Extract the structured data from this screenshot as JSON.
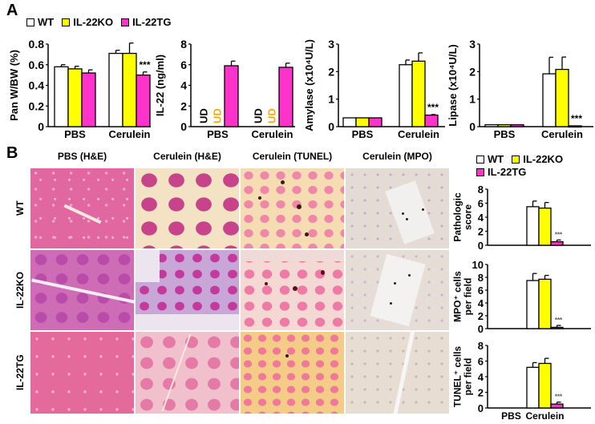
{
  "panelA": {
    "letter": "A",
    "legend": [
      {
        "label": "WT",
        "color": "#ffffff"
      },
      {
        "label": "IL-22KO",
        "color": "#ffff00"
      },
      {
        "label": "IL-22TG",
        "color": "#ff33cc"
      }
    ]
  },
  "panelB": {
    "letter": "B",
    "column_titles": [
      "PBS (H&E)",
      "Cerulein (H&E)",
      "Cerulein (TUNEL)",
      "Cerulein (MPO)"
    ],
    "row_labels": [
      "WT",
      "IL-22KO",
      "IL-22TG"
    ],
    "legend": [
      {
        "label": "WT",
        "color": "#ffffff"
      },
      {
        "label": "IL-22KO",
        "color": "#ffff00"
      },
      {
        "label": "IL-22TG",
        "color": "#ff33cc"
      }
    ]
  },
  "colors": {
    "wt": "#ffffff",
    "ko": "#ffff00",
    "tg": "#ff33cc",
    "ud_wt": "#000000",
    "ud_ko": "#ffaa00"
  },
  "chart_data": [
    {
      "id": "pan_wbw",
      "type": "bar",
      "title": "",
      "xlabel": "",
      "ylabel": "Pan W/BW (%)",
      "categories": [
        "PBS",
        "Cerulein"
      ],
      "ylim": [
        0,
        0.8
      ],
      "yticks": [
        "0",
        "0.2",
        "0.4",
        "0.6",
        "0.8"
      ],
      "series": [
        {
          "name": "WT",
          "values": [
            0.58,
            0.71
          ],
          "errors": [
            0.02,
            0.03
          ]
        },
        {
          "name": "IL-22KO",
          "values": [
            0.56,
            0.71
          ],
          "errors": [
            0.025,
            0.1
          ]
        },
        {
          "name": "IL-22TG",
          "values": [
            0.52,
            0.5
          ],
          "errors": [
            0.03,
            0.03
          ]
        }
      ],
      "annotations": [
        {
          "text": "***",
          "category": "Cerulein",
          "series": "IL-22TG"
        }
      ]
    },
    {
      "id": "il22",
      "type": "bar",
      "title": "",
      "xlabel": "",
      "ylabel": "IL-22 (ng/ml)",
      "categories": [
        "PBS",
        "Cerulein"
      ],
      "ylim": [
        0,
        8
      ],
      "yticks": [
        "0",
        "2",
        "4",
        "6",
        "8"
      ],
      "series": [
        {
          "name": "WT",
          "values": [
            null,
            null
          ],
          "errors": [
            null,
            null
          ],
          "labels": [
            "UD",
            "UD"
          ]
        },
        {
          "name": "IL-22KO",
          "values": [
            null,
            null
          ],
          "errors": [
            null,
            null
          ],
          "labels": [
            "UD",
            "UD"
          ]
        },
        {
          "name": "IL-22TG",
          "values": [
            5.9,
            5.75
          ],
          "errors": [
            0.45,
            0.4
          ]
        }
      ],
      "annotations": []
    },
    {
      "id": "amylase",
      "type": "bar",
      "title": "",
      "xlabel": "",
      "ylabel": "Amylase (x10⁴U/L)",
      "categories": [
        "PBS",
        "Cerulein"
      ],
      "ylim": [
        0,
        3
      ],
      "yticks": [
        "0",
        "1",
        "2",
        "3"
      ],
      "series": [
        {
          "name": "WT",
          "values": [
            0.32,
            2.25
          ],
          "errors": [
            0,
            0.17
          ]
        },
        {
          "name": "IL-22KO",
          "values": [
            0.32,
            2.38
          ],
          "errors": [
            0,
            0.3
          ]
        },
        {
          "name": "IL-22TG",
          "values": [
            0.32,
            0.42
          ],
          "errors": [
            0,
            0.02
          ]
        }
      ],
      "annotations": [
        {
          "text": "***",
          "category": "Cerulein",
          "series": "IL-22TG"
        }
      ]
    },
    {
      "id": "lipase",
      "type": "bar",
      "title": "",
      "xlabel": "",
      "ylabel": "Lipase (x10⁴U/L)",
      "categories": [
        "PBS",
        "Cerulein"
      ],
      "ylim": [
        0,
        3
      ],
      "yticks": [
        "0",
        "1",
        "2",
        "3"
      ],
      "series": [
        {
          "name": "WT",
          "values": [
            0.07,
            1.92
          ],
          "errors": [
            0,
            0.6
          ]
        },
        {
          "name": "IL-22KO",
          "values": [
            0.07,
            2.08
          ],
          "errors": [
            0,
            0.45
          ]
        },
        {
          "name": "IL-22TG",
          "values": [
            0.07,
            0.03
          ],
          "errors": [
            0,
            0
          ]
        }
      ],
      "annotations": [
        {
          "text": "***",
          "category": "Cerulein",
          "series": "IL-22TG"
        }
      ]
    },
    {
      "id": "pathologic_score",
      "type": "bar",
      "title": "",
      "xlabel": "",
      "ylabel": "Pathologic score",
      "categories": [
        "PBS",
        "Cerulein"
      ],
      "ylim": [
        0,
        8
      ],
      "yticks": [
        "0",
        "2",
        "4",
        "6",
        "8"
      ],
      "series": [
        {
          "name": "WT",
          "values": [
            0,
            5.5
          ],
          "errors": [
            0,
            0.8
          ]
        },
        {
          "name": "IL-22KO",
          "values": [
            0,
            5.3
          ],
          "errors": [
            0,
            0.8
          ]
        },
        {
          "name": "IL-22TG",
          "values": [
            0,
            0.5
          ],
          "errors": [
            0,
            0.25
          ]
        }
      ],
      "annotations": [
        {
          "text": "***",
          "category": "Cerulein",
          "series": "IL-22TG"
        }
      ]
    },
    {
      "id": "mpo_cells",
      "type": "bar",
      "title": "",
      "xlabel": "",
      "ylabel": "MPO⁺ cells per field",
      "categories": [
        "PBS",
        "Cerulein"
      ],
      "ylim": [
        0,
        10
      ],
      "yticks": [
        "0",
        "2",
        "4",
        "6",
        "8",
        "10"
      ],
      "series": [
        {
          "name": "WT",
          "values": [
            0,
            7.5
          ],
          "errors": [
            0,
            1.1
          ]
        },
        {
          "name": "IL-22KO",
          "values": [
            0,
            7.7
          ],
          "errors": [
            0,
            0.6
          ]
        },
        {
          "name": "IL-22TG",
          "values": [
            0,
            0.2
          ],
          "errors": [
            0,
            0.3
          ]
        }
      ],
      "annotations": [
        {
          "text": "***",
          "category": "Cerulein",
          "series": "IL-22TG"
        }
      ]
    },
    {
      "id": "tunel_cells",
      "type": "bar",
      "title": "",
      "xlabel": "",
      "ylabel": "TUNEL⁺ cells per field",
      "categories": [
        "PBS",
        "Cerulein"
      ],
      "ylim": [
        0,
        8
      ],
      "yticks": [
        "0",
        "2",
        "4",
        "6",
        "8"
      ],
      "series": [
        {
          "name": "WT",
          "values": [
            0,
            5.2
          ],
          "errors": [
            0,
            0.6
          ]
        },
        {
          "name": "IL-22KO",
          "values": [
            0,
            5.7
          ],
          "errors": [
            0,
            0.65
          ]
        },
        {
          "name": "IL-22TG",
          "values": [
            0,
            0.5
          ],
          "errors": [
            0,
            0.25
          ]
        }
      ],
      "annotations": [
        {
          "text": "***",
          "category": "Cerulein",
          "series": "IL-22TG"
        }
      ]
    }
  ]
}
